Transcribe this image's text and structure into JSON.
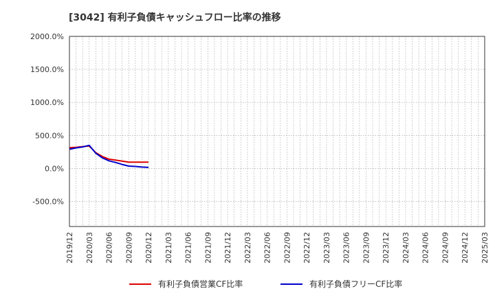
{
  "chart_data": {
    "type": "line",
    "title": "[3042]  有利子負債キャッシュフロー比率の推移",
    "xlabel": "",
    "ylabel": "",
    "x_ticks": [
      "2019/12",
      "2020/03",
      "2020/06",
      "2020/09",
      "2020/12",
      "2021/03",
      "2021/06",
      "2021/09",
      "2021/12",
      "2022/03",
      "2022/06",
      "2022/09",
      "2022/12",
      "2023/03",
      "2023/06",
      "2023/09",
      "2023/12",
      "2024/03",
      "2024/06",
      "2024/09",
      "2024/12",
      "2025/03"
    ],
    "y_ticks": [
      "2000.0%",
      "1500.0%",
      "1000.0%",
      "500.0%",
      "0.0%",
      "-500.0%"
    ],
    "ylim": [
      -880,
      2000
    ],
    "grid": true,
    "legend_position": "bottom",
    "series": [
      {
        "name": "有利子負債営業CF比率",
        "color": "#dd0000",
        "x": [
          "2019/12",
          "2020/01",
          "2020/02",
          "2020/03",
          "2020/04",
          "2020/05",
          "2020/06",
          "2020/07",
          "2020/08",
          "2020/09",
          "2020/10",
          "2020/11",
          "2020/12"
        ],
        "values": [
          315,
          320,
          330,
          340,
          240,
          180,
          140,
          125,
          110,
          95,
          95,
          95,
          95
        ]
      },
      {
        "name": "有利子負債フリーCF比率",
        "color": "#0000cc",
        "x": [
          "2019/12",
          "2020/01",
          "2020/02",
          "2020/03",
          "2020/04",
          "2020/05",
          "2020/06",
          "2020/07",
          "2020/08",
          "2020/09",
          "2020/10",
          "2020/11",
          "2020/12"
        ],
        "values": [
          290,
          310,
          325,
          350,
          230,
          160,
          115,
          90,
          60,
          35,
          30,
          20,
          15
        ]
      }
    ]
  }
}
